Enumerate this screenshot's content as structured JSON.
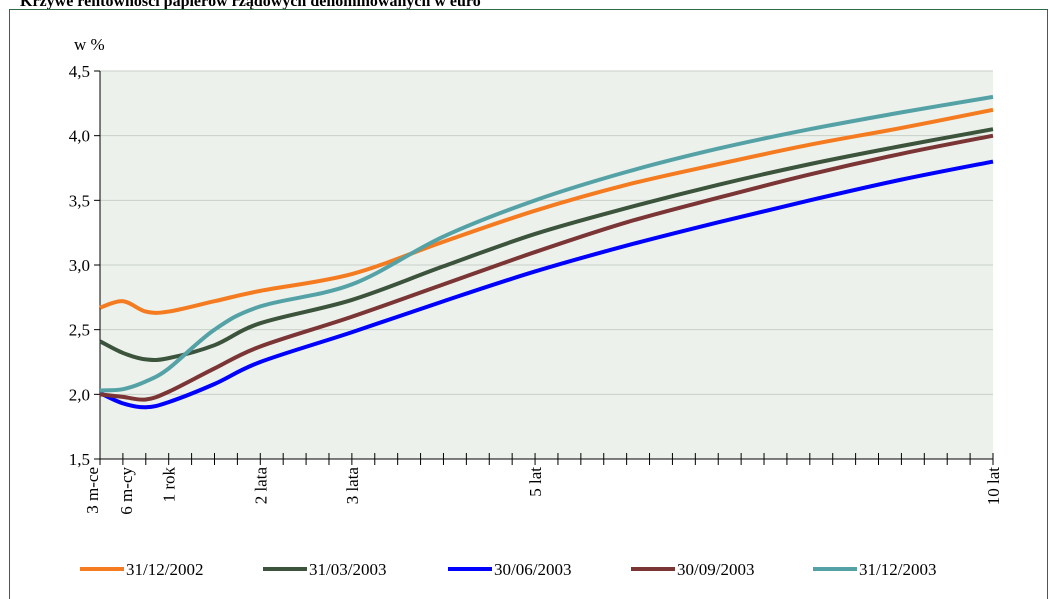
{
  "title": "Krzywe rentowności papierów rządowych denominowanych w euro",
  "chart_data": {
    "type": "line",
    "title": "Krzywe rentowności papierów rządowych denominowanych w euro",
    "ylabel": "w %",
    "xlabel": "",
    "ylim": [
      1.5,
      4.5
    ],
    "yticks": [
      "1,5",
      "2,0",
      "2,5",
      "3,0",
      "3,5",
      "4,0",
      "4,5"
    ],
    "xlim": [
      0.25,
      10
    ],
    "xticks": [
      {
        "x": 0.25,
        "label": "3 m-ce"
      },
      {
        "x": 0.5,
        "label": "6 m-cy"
      },
      {
        "x": 1,
        "label": "1 rok"
      },
      {
        "x": 2,
        "label": "2 lata"
      },
      {
        "x": 3,
        "label": "3 lata"
      },
      {
        "x": 5,
        "label": "5 lat"
      },
      {
        "x": 10,
        "label": "10 lat"
      }
    ],
    "grid": true,
    "legend": "bottom",
    "series": [
      {
        "name": "31/12/2002",
        "color": "#f47b20",
        "x": [
          0.25,
          0.5,
          0.75,
          1,
          1.5,
          2,
          3,
          4,
          5,
          6,
          7,
          8,
          9,
          10
        ],
        "y": [
          2.67,
          2.72,
          2.64,
          2.64,
          2.72,
          2.8,
          2.93,
          3.18,
          3.42,
          3.62,
          3.78,
          3.93,
          4.06,
          4.2
        ]
      },
      {
        "name": "31/03/2003",
        "color": "#3c533c",
        "x": [
          0.25,
          0.5,
          0.75,
          1,
          1.5,
          2,
          3,
          4,
          5,
          6,
          7,
          8,
          9,
          10
        ],
        "y": [
          2.41,
          2.32,
          2.27,
          2.28,
          2.38,
          2.55,
          2.73,
          2.99,
          3.24,
          3.44,
          3.62,
          3.78,
          3.92,
          4.05
        ]
      },
      {
        "name": "30/06/2003",
        "color": "#0000ff",
        "x": [
          0.25,
          0.5,
          0.75,
          1,
          1.5,
          2,
          3,
          4,
          5,
          6,
          7,
          8,
          9,
          10
        ],
        "y": [
          2.01,
          1.93,
          1.9,
          1.94,
          2.08,
          2.25,
          2.48,
          2.72,
          2.95,
          3.15,
          3.33,
          3.5,
          3.66,
          3.8
        ]
      },
      {
        "name": "30/09/2003",
        "color": "#7b3535",
        "x": [
          0.25,
          0.5,
          0.75,
          1,
          1.5,
          2,
          3,
          4,
          5,
          6,
          7,
          8,
          9,
          10
        ],
        "y": [
          2.0,
          1.98,
          1.96,
          2.02,
          2.2,
          2.37,
          2.6,
          2.85,
          3.1,
          3.33,
          3.52,
          3.7,
          3.86,
          4.0
        ]
      },
      {
        "name": "31/12/2003",
        "color": "#55a2a6",
        "x": [
          0.25,
          0.5,
          0.75,
          1,
          1.5,
          2,
          3,
          4,
          5,
          6,
          7,
          8,
          9,
          10
        ],
        "y": [
          2.03,
          2.04,
          2.1,
          2.2,
          2.5,
          2.68,
          2.85,
          3.22,
          3.5,
          3.72,
          3.9,
          4.05,
          4.18,
          4.3
        ]
      }
    ]
  }
}
